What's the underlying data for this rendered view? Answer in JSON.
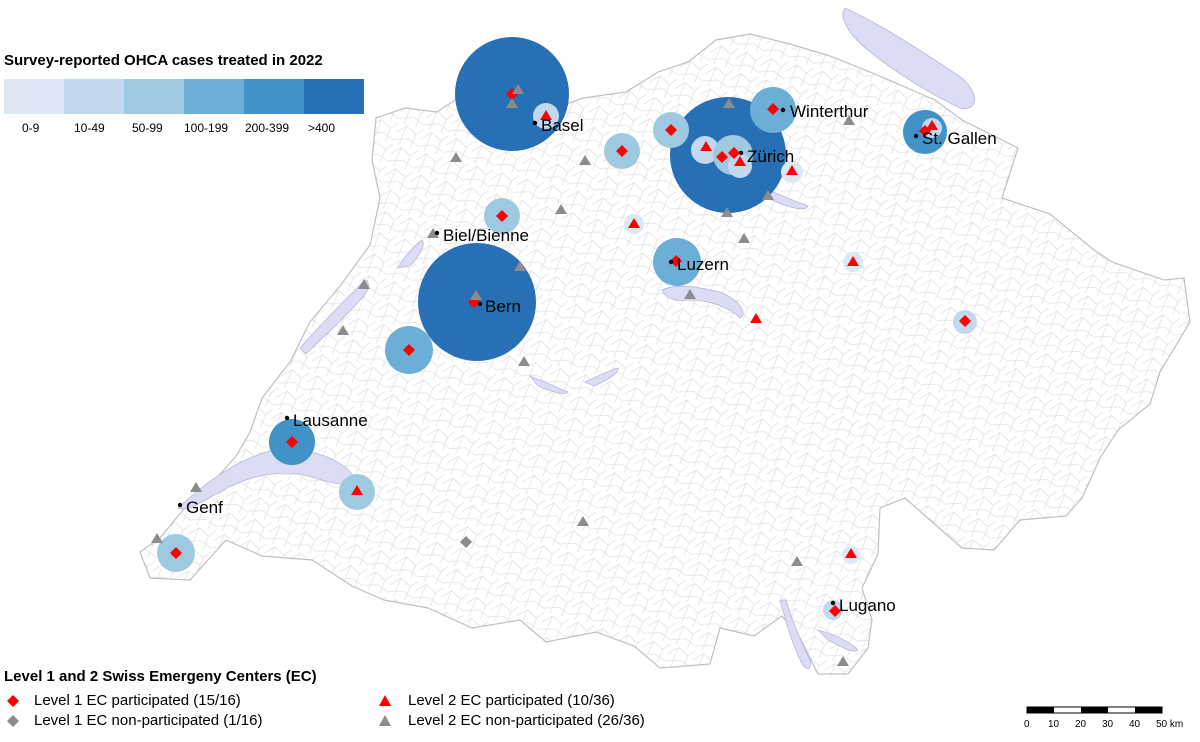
{
  "ohca_legend": {
    "title": "Survey-reported OHCA cases treated in 2022",
    "bins": [
      {
        "label": "0-9",
        "color": "#dce9f5"
      },
      {
        "label": "10-49",
        "color": "#c2d8ee"
      },
      {
        "label": "50-99",
        "color": "#9ecae1"
      },
      {
        "label": "100-199",
        "color": "#6baed6"
      },
      {
        "label": "200-399",
        "color": "#4192c6"
      },
      {
        "label": ">400",
        "color": "#2870b5"
      }
    ]
  },
  "ec_legend": {
    "title": "Level 1 and 2 Swiss Emergeny Centers (EC)",
    "items": [
      {
        "symbol": "diamond",
        "color": "#ff0000",
        "label": "Level 1 EC participated (15/16)"
      },
      {
        "symbol": "diamond",
        "color": "#8c8c8c",
        "label": "Level 1 EC non-participated (1/16)"
      },
      {
        "symbol": "triangle",
        "color": "#ff0000",
        "label": "Level 2 EC participated (10/36)"
      },
      {
        "symbol": "triangle",
        "color": "#8c8c8c",
        "label": "Level 2 EC non-participated (26/36)"
      }
    ]
  },
  "cities": [
    "Basel",
    "Winterthur",
    "St. Gallen",
    "Zürich",
    "Biel/Bienne",
    "Luzern",
    "Bern",
    "Lausanne",
    "Genf",
    "Lugano"
  ],
  "scalebar": {
    "ticks": [
      "0",
      "10",
      "20",
      "30",
      "40",
      "50 km"
    ]
  },
  "colors": {
    "participated": "#ff0000",
    "non_participated": "#8c8c8c",
    "lakes": "#dcdcf5",
    "borders": "#c8c8c8"
  }
}
